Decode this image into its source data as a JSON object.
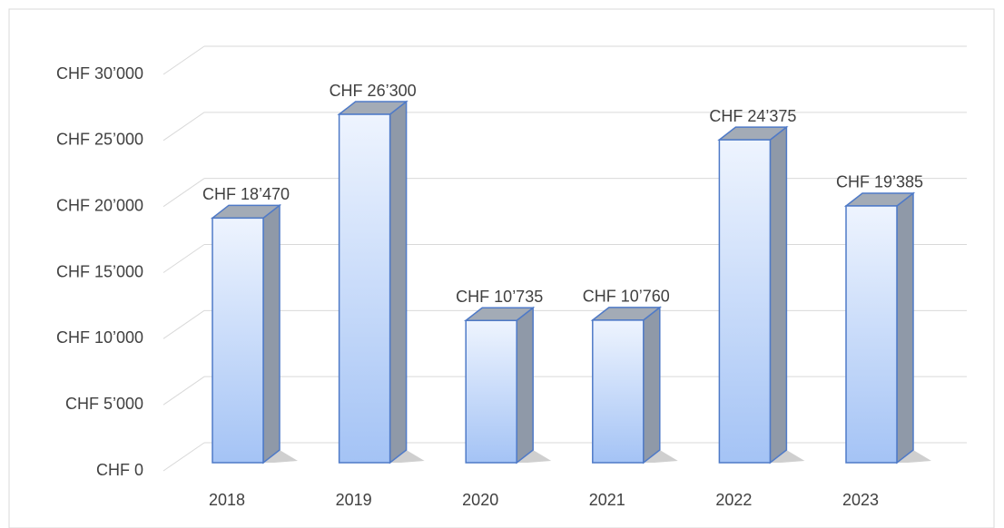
{
  "chart_data": {
    "type": "bar3d",
    "categories": [
      "2018",
      "2019",
      "2020",
      "2021",
      "2022",
      "2023"
    ],
    "values": [
      18470,
      26300,
      10735,
      10760,
      24375,
      19385
    ],
    "value_labels": [
      "CHF 18’470",
      "CHF 26’300",
      "CHF 10’735",
      "CHF 10’760",
      "CHF 24’375",
      "CHF 19’385"
    ],
    "ylim": [
      0,
      30000
    ],
    "yticks": [
      {
        "value": 0,
        "label": "CHF 0"
      },
      {
        "value": 5000,
        "label": "CHF 5’000"
      },
      {
        "value": 10000,
        "label": "CHF 10’000"
      },
      {
        "value": 15000,
        "label": "CHF 15’000"
      },
      {
        "value": 20000,
        "label": "CHF 20’000"
      },
      {
        "value": 25000,
        "label": "CHF 25’000"
      },
      {
        "value": 30000,
        "label": "CHF 30’000"
      }
    ],
    "grid": true,
    "color": "#4f7ac7"
  }
}
